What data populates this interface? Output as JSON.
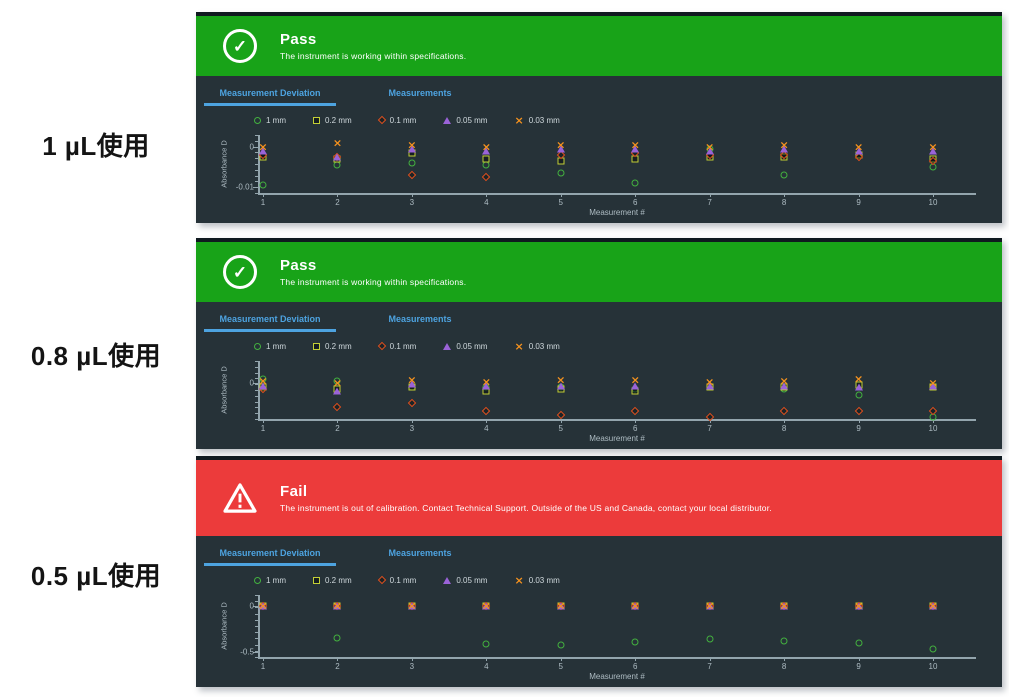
{
  "row_labels": [
    {
      "text": "1 µL使用"
    },
    {
      "text": "0.8 µL使用"
    },
    {
      "text": "0.5 µL使用"
    }
  ],
  "colors": {
    "pass_banner": "#18a318",
    "fail_banner": "#ec3b3b",
    "panel_background": "#263238",
    "tab_accent": "#4da3e0",
    "axis": "#93a5ad",
    "series_1mm": "#43b13f",
    "series_02mm": "#c3cf35",
    "series_01mm": "#e2511f",
    "series_005mm": "#9a63d8",
    "series_003mm": "#f5921e"
  },
  "panels": [
    {
      "status": {
        "state": "pass",
        "title": "Pass",
        "message": "The instrument is working within specifications."
      },
      "tabs": [
        {
          "label": "Measurement Deviation",
          "active": true
        },
        {
          "label": "Measurements",
          "active": false
        }
      ],
      "chart_data": {
        "type": "scatter",
        "x": [
          1,
          2,
          3,
          4,
          5,
          6,
          7,
          8,
          9,
          10
        ],
        "xlabel": "Measurement #",
        "ylabel": "Absorbance D",
        "ylim": [
          -0.0115,
          0.003
        ],
        "yticks": [
          {
            "value": 0,
            "label": "0"
          },
          {
            "value": -0.01,
            "label": "-0.01"
          }
        ],
        "grid": false,
        "legend_position": "top",
        "series": [
          {
            "name": "1 mm",
            "marker": "circle",
            "color": "#43b13f",
            "values": [
              -0.0095,
              -0.0045,
              -0.004,
              -0.0045,
              -0.0065,
              -0.009,
              -0.0005,
              -0.007,
              -0.002,
              -0.005
            ]
          },
          {
            "name": "0.2 mm",
            "marker": "square",
            "color": "#c3cf35",
            "values": [
              -0.0025,
              -0.003,
              -0.0015,
              -0.003,
              -0.0035,
              -0.003,
              -0.0025,
              -0.0025,
              -0.002,
              -0.003
            ]
          },
          {
            "name": "0.1 mm",
            "marker": "diamond",
            "color": "#e2511f",
            "values": [
              -0.002,
              -0.0025,
              -0.007,
              -0.0075,
              -0.002,
              -0.0015,
              -0.002,
              -0.002,
              -0.0025,
              -0.0035
            ]
          },
          {
            "name": "0.05 mm",
            "marker": "triangle",
            "color": "#9a63d8",
            "values": [
              -0.001,
              -0.0025,
              -0.0005,
              -0.001,
              -0.0005,
              -0.0005,
              -0.001,
              -0.0005,
              -0.001,
              -0.001
            ]
          },
          {
            "name": "0.03 mm",
            "marker": "x",
            "color": "#f5921e",
            "values": [
              0.0,
              0.001,
              0.0005,
              0.0,
              0.0005,
              0.0005,
              0.0,
              0.0005,
              0.0,
              0.0
            ]
          }
        ]
      }
    },
    {
      "status": {
        "state": "pass",
        "title": "Pass",
        "message": "The instrument is working within specifications."
      },
      "tabs": [
        {
          "label": "Measurement Deviation",
          "active": true
        },
        {
          "label": "Measurements",
          "active": false
        }
      ],
      "chart_data": {
        "type": "scatter",
        "x": [
          1,
          2,
          3,
          4,
          5,
          6,
          7,
          8,
          9,
          10
        ],
        "xlabel": "Measurement #",
        "ylabel": "Absorbance D",
        "ylim": [
          -0.009,
          0.0055
        ],
        "yticks": [
          {
            "value": 0,
            "label": "0"
          }
        ],
        "grid": false,
        "legend_position": "top",
        "series": [
          {
            "name": "1 mm",
            "marker": "circle",
            "color": "#43b13f",
            "values": [
              0.001,
              0.0005,
              -0.001,
              -0.001,
              -0.001,
              -0.0015,
              -0.001,
              -0.0015,
              -0.003,
              -0.0085
            ]
          },
          {
            "name": "0.2 mm",
            "marker": "square",
            "color": "#c3cf35",
            "values": [
              -0.001,
              -0.0015,
              -0.001,
              -0.002,
              -0.0015,
              -0.002,
              -0.001,
              -0.001,
              -0.0005,
              -0.001
            ]
          },
          {
            "name": "0.1 mm",
            "marker": "diamond",
            "color": "#e2511f",
            "values": [
              -0.0015,
              -0.006,
              -0.005,
              -0.007,
              -0.008,
              -0.007,
              -0.0085,
              -0.007,
              -0.007,
              -0.007
            ]
          },
          {
            "name": "0.05 mm",
            "marker": "triangle",
            "color": "#9a63d8",
            "values": [
              -0.0008,
              -0.002,
              -0.0002,
              -0.0008,
              -0.0008,
              -0.0008,
              -0.0008,
              -0.0008,
              -0.001,
              -0.0008
            ]
          },
          {
            "name": "0.03 mm",
            "marker": "x",
            "color": "#f5921e",
            "values": [
              0.0005,
              0.0,
              0.0008,
              0.0003,
              0.0008,
              0.0008,
              0.0003,
              0.0005,
              0.001,
              0.0
            ]
          }
        ]
      }
    },
    {
      "status": {
        "state": "fail",
        "title": "Fail",
        "message": "The instrument is out of calibration. Contact Technical Support. Outside of the US and Canada, contact your local distributor."
      },
      "tabs": [
        {
          "label": "Measurement Deviation",
          "active": true
        },
        {
          "label": "Measurements",
          "active": false
        }
      ],
      "chart_data": {
        "type": "scatter",
        "x": [
          1,
          2,
          3,
          4,
          5,
          6,
          7,
          8,
          9,
          10
        ],
        "xlabel": "Measurement #",
        "ylabel": "Absorbance D",
        "ylim": [
          -0.55,
          0.12
        ],
        "yticks": [
          {
            "value": 0,
            "label": "0"
          },
          {
            "value": -0.5,
            "label": "-0.5"
          }
        ],
        "grid": false,
        "legend_position": "top",
        "series": [
          {
            "name": "1 mm",
            "marker": "circle",
            "color": "#43b13f",
            "values": [
              0,
              -0.34,
              0,
              -0.41,
              -0.42,
              -0.39,
              -0.36,
              -0.38,
              -0.4,
              -0.46
            ]
          },
          {
            "name": "0.2 mm",
            "marker": "square",
            "color": "#c3cf35",
            "values": [
              0,
              0,
              0,
              0,
              0,
              0,
              0,
              0,
              0,
              0
            ]
          },
          {
            "name": "0.1 mm",
            "marker": "diamond",
            "color": "#e2511f",
            "values": [
              0,
              0,
              0,
              0,
              0,
              0,
              0,
              0,
              0,
              0
            ]
          },
          {
            "name": "0.05 mm",
            "marker": "triangle",
            "color": "#9a63d8",
            "values": [
              0,
              0,
              0,
              0,
              0,
              0,
              0,
              0,
              0,
              0
            ]
          },
          {
            "name": "0.03 mm",
            "marker": "x",
            "color": "#f5921e",
            "values": [
              0,
              0,
              0,
              0,
              0,
              0,
              0,
              0,
              0,
              0
            ]
          }
        ]
      }
    }
  ]
}
